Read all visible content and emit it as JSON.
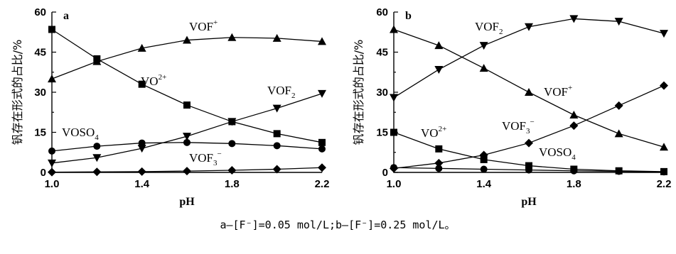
{
  "caption": "a—[F⁻]=0.05 mol/L;b—[F⁻]=0.25 mol/L。",
  "chart_data": [
    {
      "type": "line",
      "panel": "a",
      "xlabel": "pH",
      "ylabel": "钒存在形式的占比/%",
      "xlim": [
        1.0,
        2.2
      ],
      "ylim": [
        0,
        60
      ],
      "xticks": [
        "1.0",
        "1.4",
        "1.8",
        "2.2"
      ],
      "yticks": [
        "0",
        "15",
        "30",
        "45",
        "60"
      ],
      "x": [
        1.0,
        1.2,
        1.4,
        1.6,
        1.8,
        2.0,
        2.2
      ],
      "series": [
        {
          "name": "VO2+",
          "label_parts": [
            [
              "VO",
              ""
            ],
            [
              "2+",
              "sup"
            ]
          ],
          "marker": "square",
          "values": [
            53.5,
            42.5,
            33.0,
            25.2,
            19.0,
            14.5,
            11.2
          ]
        },
        {
          "name": "VOF+",
          "label_parts": [
            [
              "VOF",
              ""
            ],
            [
              "+",
              "sup"
            ]
          ],
          "marker": "triangle-up",
          "values": [
            35.0,
            41.5,
            46.5,
            49.5,
            50.5,
            50.2,
            49.0
          ]
        },
        {
          "name": "VOF2",
          "label_parts": [
            [
              "VOF",
              ""
            ],
            [
              "2",
              "sub"
            ]
          ],
          "marker": "triangle-down",
          "values": [
            3.5,
            5.5,
            9.0,
            13.5,
            19.0,
            24.0,
            29.5
          ]
        },
        {
          "name": "VOSO4",
          "label_parts": [
            [
              "VOSO",
              ""
            ],
            [
              "4",
              "sub"
            ]
          ],
          "marker": "circle",
          "values": [
            8.0,
            9.8,
            11.0,
            11.2,
            10.8,
            10.0,
            8.8
          ]
        },
        {
          "name": "VOF3-",
          "label_parts": [
            [
              "VOF",
              ""
            ],
            [
              "3",
              "sub"
            ],
            [
              "−",
              "sup"
            ]
          ],
          "marker": "diamond",
          "values": [
            0.1,
            0.2,
            0.3,
            0.5,
            0.8,
            1.2,
            1.8
          ]
        }
      ]
    },
    {
      "type": "line",
      "panel": "b",
      "xlabel": "pH",
      "ylabel": "钒存在形式的占比/%",
      "xlim": [
        1.0,
        2.2
      ],
      "ylim": [
        0,
        60
      ],
      "xticks": [
        "1.0",
        "1.4",
        "1.8",
        "2.2"
      ],
      "yticks": [
        "0",
        "15",
        "30",
        "45",
        "60"
      ],
      "x": [
        1.0,
        1.2,
        1.4,
        1.6,
        1.8,
        2.0,
        2.2
      ],
      "series": [
        {
          "name": "VOF2",
          "label_parts": [
            [
              "VOF",
              ""
            ],
            [
              "2",
              "sub"
            ]
          ],
          "marker": "triangle-down",
          "values": [
            28.0,
            38.5,
            47.5,
            54.5,
            57.5,
            56.5,
            52.0
          ]
        },
        {
          "name": "VOF+",
          "label_parts": [
            [
              "VOF",
              ""
            ],
            [
              "+",
              "sup"
            ]
          ],
          "marker": "triangle-up",
          "values": [
            53.5,
            47.5,
            39.0,
            30.0,
            21.5,
            14.5,
            9.5
          ]
        },
        {
          "name": "VOF3-",
          "label_parts": [
            [
              "VOF",
              ""
            ],
            [
              "3",
              "sub"
            ],
            [
              "−",
              "sup"
            ]
          ],
          "marker": "diamond",
          "values": [
            1.5,
            3.5,
            6.5,
            11.0,
            17.5,
            25.0,
            32.5
          ]
        },
        {
          "name": "VO2+",
          "label_parts": [
            [
              "VO",
              ""
            ],
            [
              "2+",
              "sup"
            ]
          ],
          "marker": "square",
          "values": [
            15.0,
            8.8,
            4.8,
            2.5,
            1.2,
            0.6,
            0.3
          ]
        },
        {
          "name": "VOSO4",
          "label_parts": [
            [
              "VOSO",
              ""
            ],
            [
              "4",
              "sub"
            ]
          ],
          "marker": "circle",
          "values": [
            1.8,
            1.5,
            1.2,
            0.9,
            0.6,
            0.4,
            0.2
          ]
        }
      ]
    }
  ]
}
